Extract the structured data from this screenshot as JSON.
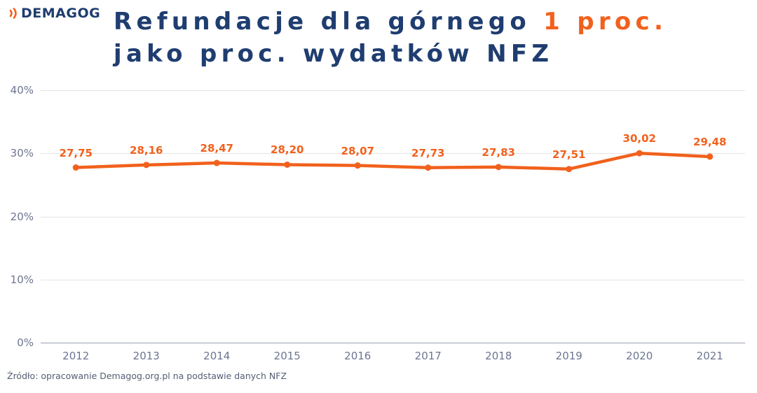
{
  "brand": {
    "name": "DEMAGOG",
    "icon": "sound-waves-icon",
    "navy": "#1f3d70",
    "orange": "#F1611D"
  },
  "title": {
    "line1_main": "Refundacje dla górnego ",
    "line1_accent": "1 proc.",
    "line2": "jako proc. wydatków NFZ"
  },
  "source": "Źródło: opracowanie Demagog.org.pl na podstawie danych NFZ",
  "chart_data": {
    "type": "line",
    "title": "Refundacje dla górnego 1 proc. jako proc. wydatków NFZ",
    "categories": [
      "2012",
      "2013",
      "2014",
      "2015",
      "2016",
      "2017",
      "2018",
      "2019",
      "2020",
      "2021"
    ],
    "values": [
      27.75,
      28.16,
      28.47,
      28.2,
      28.07,
      27.73,
      27.83,
      27.51,
      30.02,
      29.48
    ],
    "value_labels": [
      "27,75",
      "28,16",
      "28,47",
      "28,20",
      "28,07",
      "27,73",
      "27,83",
      "27,51",
      "30,02",
      "29,48"
    ],
    "xlabel": "",
    "ylabel": "",
    "ylim": [
      0,
      40
    ],
    "y_ticks": [
      0,
      10,
      20,
      30,
      40
    ],
    "y_tick_labels": [
      "0%",
      "10%",
      "20%",
      "30%",
      "40%"
    ],
    "grid": true,
    "legend": "none",
    "line_color": "#F1611D",
    "marker": "circle",
    "axis_text_color": "#6e7591",
    "gridline_color": "#e4e4e8",
    "zero_line_color": "#9aa1b2"
  }
}
